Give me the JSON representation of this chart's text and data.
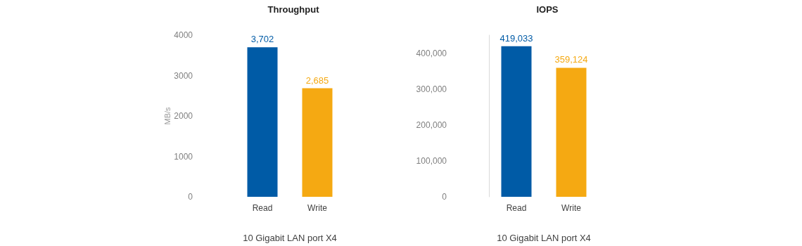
{
  "chart_data": [
    {
      "type": "bar",
      "title": "Throughput",
      "xlabel": "10 Gigabit LAN port X4",
      "ylabel": "MB/s",
      "categories": [
        "Read",
        "Write"
      ],
      "values": [
        3702,
        2685
      ],
      "colors": [
        "#005ba6",
        "#f5a912"
      ],
      "value_labels": [
        "3,702",
        "2,685"
      ],
      "ylim": [
        0,
        4000
      ],
      "yticks": [
        0,
        1000,
        2000,
        3000,
        4000
      ],
      "grid": false
    },
    {
      "type": "bar",
      "title": "IOPS",
      "xlabel": "10 Gigabit LAN port X4",
      "categories": [
        "Read",
        "Write"
      ],
      "values": [
        419033,
        359124
      ],
      "colors": [
        "#005ba6",
        "#f5a912"
      ],
      "value_labels": [
        "419,033",
        "359,124"
      ],
      "ylim": [
        0,
        450000
      ],
      "yticks": [
        0,
        {
          "value": 100000,
          "label": "100,000"
        },
        {
          "value": 200000,
          "label": "200,000"
        },
        {
          "value": 300000,
          "label": "300,000"
        },
        {
          "value": 400000,
          "label": "400,000"
        }
      ],
      "grid": false
    }
  ]
}
